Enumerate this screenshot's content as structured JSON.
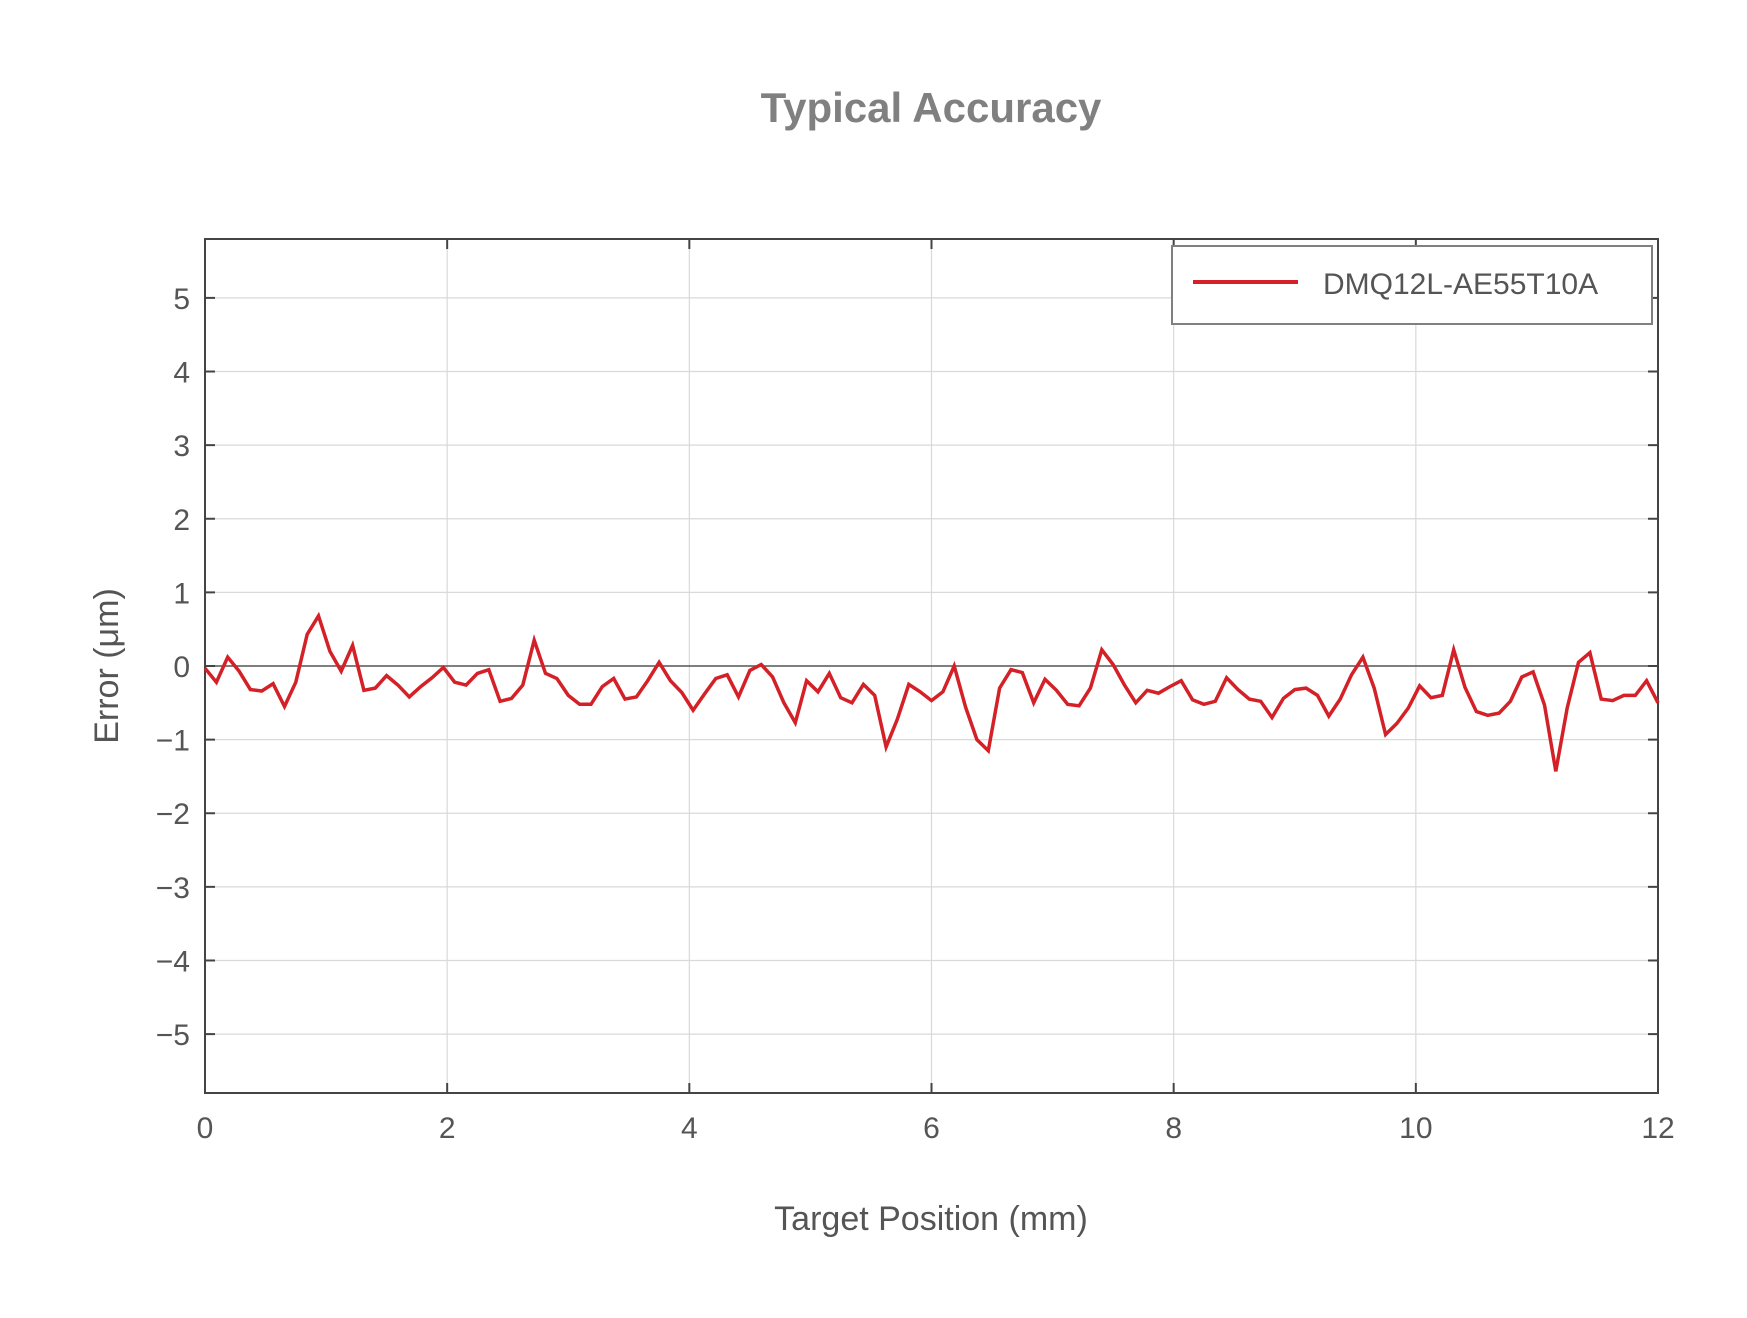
{
  "chart_data": {
    "type": "line",
    "title": "Typical Accuracy",
    "xlabel": "Target Position (mm)",
    "ylabel": "Error (μm)",
    "xlim": [
      0,
      12
    ],
    "ylim": [
      -5.8,
      5.8
    ],
    "xticks": [
      0,
      2,
      4,
      6,
      8,
      10,
      12
    ],
    "yticks": [
      5,
      4,
      3,
      2,
      1,
      0,
      -1,
      -2,
      -3,
      -4,
      -5
    ],
    "ytick_labels": [
      "5",
      "4",
      "3",
      "2",
      "1",
      "0",
      "−1",
      "−2",
      "−3",
      "−4",
      "−5"
    ],
    "grid": true,
    "zero_line": true,
    "legend_position": "upper right",
    "series": [
      {
        "name": "DMQ12L-AE55T10A",
        "color": "#d42027",
        "x_start": 0,
        "x_step": 0.09375,
        "values": [
          -0.03,
          -0.22,
          0.12,
          -0.07,
          -0.32,
          -0.34,
          -0.24,
          -0.55,
          -0.22,
          0.43,
          0.68,
          0.2,
          -0.07,
          0.28,
          -0.33,
          -0.3,
          -0.13,
          -0.26,
          -0.42,
          -0.28,
          -0.16,
          -0.02,
          -0.22,
          -0.26,
          -0.1,
          -0.05,
          -0.48,
          -0.44,
          -0.26,
          0.35,
          -0.1,
          -0.17,
          -0.4,
          -0.52,
          -0.52,
          -0.28,
          -0.17,
          -0.45,
          -0.42,
          -0.2,
          0.05,
          -0.2,
          -0.36,
          -0.6,
          -0.38,
          -0.17,
          -0.12,
          -0.42,
          -0.06,
          0.02,
          -0.15,
          -0.5,
          -0.77,
          -0.2,
          -0.35,
          -0.1,
          -0.43,
          -0.5,
          -0.25,
          -0.4,
          -1.1,
          -0.72,
          -0.25,
          -0.35,
          -0.47,
          -0.35,
          0.0,
          -0.56,
          -1.0,
          -1.15,
          -0.3,
          -0.05,
          -0.09,
          -0.5,
          -0.18,
          -0.33,
          -0.52,
          -0.54,
          -0.3,
          0.22,
          0.02,
          -0.26,
          -0.5,
          -0.33,
          -0.37,
          -0.28,
          -0.2,
          -0.46,
          -0.52,
          -0.48,
          -0.16,
          -0.32,
          -0.45,
          -0.48,
          -0.7,
          -0.44,
          -0.32,
          -0.3,
          -0.4,
          -0.68,
          -0.45,
          -0.12,
          0.12,
          -0.3,
          -0.93,
          -0.78,
          -0.57,
          -0.27,
          -0.43,
          -0.4,
          0.22,
          -0.29,
          -0.62,
          -0.67,
          -0.64,
          -0.48,
          -0.15,
          -0.08,
          -0.53,
          -1.43,
          -0.57,
          0.05,
          0.18,
          -0.45,
          -0.47,
          -0.4,
          -0.4,
          -0.2,
          -0.5
        ]
      }
    ]
  },
  "legend": {
    "items": [
      {
        "label": "DMQ12L-AE55T10A",
        "color": "#d42027"
      }
    ]
  }
}
